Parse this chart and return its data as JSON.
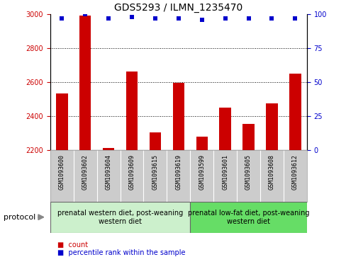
{
  "title": "GDS5293 / ILMN_1235470",
  "samples": [
    "GSM1093600",
    "GSM1093602",
    "GSM1093604",
    "GSM1093609",
    "GSM1093615",
    "GSM1093619",
    "GSM1093599",
    "GSM1093601",
    "GSM1093605",
    "GSM1093608",
    "GSM1093612"
  ],
  "counts": [
    2535,
    2990,
    2215,
    2665,
    2305,
    2595,
    2280,
    2450,
    2355,
    2475,
    2650
  ],
  "percentiles": [
    97,
    100,
    97,
    98,
    97,
    97,
    96,
    97,
    97,
    97,
    97
  ],
  "ylim_left": [
    2200,
    3000
  ],
  "ylim_right": [
    0,
    100
  ],
  "yticks_left": [
    2200,
    2400,
    2600,
    2800,
    3000
  ],
  "yticks_right": [
    0,
    25,
    50,
    75,
    100
  ],
  "group1_label": "prenatal western diet, post-weaning\nwestern diet",
  "group2_label": "prenatal low-fat diet, post-weaning\nwestern diet",
  "group1_n": 6,
  "group2_n": 5,
  "group1_color": "#ccf0cc",
  "group2_color": "#66dd66",
  "bar_color": "#cc0000",
  "percentile_color": "#0000cc",
  "bar_width": 0.5,
  "background_color": "#ffffff",
  "tick_bg_color": "#cccccc",
  "left_tick_color": "#cc0000",
  "right_tick_color": "#0000cc",
  "grid_color": "#000000",
  "title_fontsize": 10,
  "tick_fontsize": 7,
  "sample_fontsize": 6,
  "protocol_fontsize": 8,
  "legend_fontsize": 7,
  "group_label_fontsize": 7
}
